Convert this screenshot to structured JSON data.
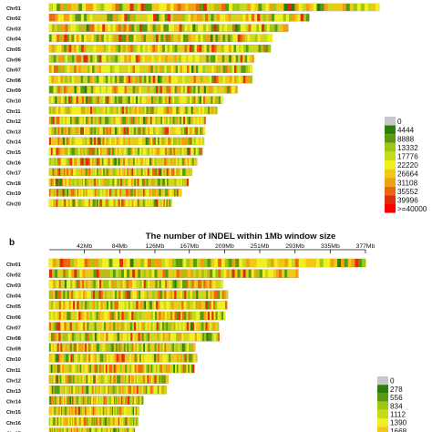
{
  "chart_data": [
    {
      "type": "heatmap",
      "panel_label": "",
      "title": "",
      "chromosomes": [
        "Chr01",
        "Chr02",
        "Chr03",
        "Chr04",
        "Chr05",
        "Chr06",
        "Chr07",
        "Chr08",
        "Chr09",
        "Chr10",
        "Chr11",
        "Chr12",
        "Chr13",
        "Chr14",
        "Chr15",
        "Chr16",
        "Chr17",
        "Chr18",
        "Chr19",
        "Chr20"
      ],
      "chromosome_lengths_mb": [
        377,
        297,
        273,
        255,
        253,
        234,
        232,
        232,
        215,
        198,
        192,
        179,
        178,
        177,
        175,
        169,
        163,
        159,
        151,
        140
      ],
      "window_size_mb": 1,
      "legend": {
        "labels": [
          "0",
          "4444",
          "8888",
          "13332",
          "17776",
          "22220",
          "26664",
          "31108",
          "35552",
          "39996",
          ">=40000"
        ],
        "colors": [
          "#c8c8c8",
          "#2e7d0c",
          "#5a9a10",
          "#9ec814",
          "#c8d81c",
          "#f0f020",
          "#f0c818",
          "#f0a010",
          "#e86a0c",
          "#e02c0c",
          "#ff0000"
        ]
      }
    },
    {
      "type": "heatmap",
      "panel_label": "b",
      "title": "The number of INDEL within 1Mb window size",
      "x_ticks": [
        "42Mb",
        "84Mb",
        "126Mb",
        "167Mb",
        "209Mb",
        "251Mb",
        "293Mb",
        "335Mb",
        "377Mb"
      ],
      "x_tick_values_mb": [
        42,
        84,
        126,
        167,
        209,
        251,
        293,
        335,
        377
      ],
      "xlim_mb": [
        0,
        377
      ],
      "chromosomes": [
        "Chr01",
        "Chr02",
        "Chr03",
        "Chr04",
        "Chr05",
        "Chr06",
        "Chr07",
        "Chr08",
        "Chr09",
        "Chr10",
        "Chr11",
        "Chr12",
        "Chr13",
        "Chr14",
        "Chr15",
        "Chr16",
        "Chr17"
      ],
      "chromosome_lengths_mb": [
        377,
        297,
        207,
        213,
        212,
        210,
        202,
        203,
        174,
        176,
        173,
        142,
        140,
        112,
        107,
        106,
        102
      ],
      "window_size_mb": 1,
      "legend": {
        "labels": [
          "0",
          "278",
          "556",
          "834",
          "1112",
          "1390",
          "1668"
        ],
        "colors": [
          "#c8c8c8",
          "#2e7d0c",
          "#5a9a10",
          "#9ec814",
          "#c8d81c",
          "#f0f020",
          "#f0c818"
        ]
      }
    }
  ]
}
